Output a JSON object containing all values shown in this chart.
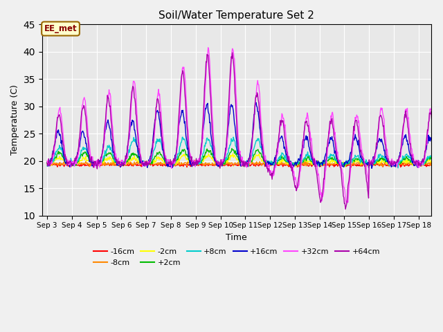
{
  "title": "Soil/Water Temperature Set 2",
  "xlabel": "Time",
  "ylabel": "Temperature (C)",
  "ylim": [
    10,
    45
  ],
  "annotation_text": "EE_met",
  "annotation_bg": "#ffffcc",
  "annotation_border": "#996600",
  "annotation_text_color": "#880000",
  "plot_bg": "#e8e8e8",
  "grid_color": "#ffffff",
  "series_colors": {
    "-16cm": "#ff0000",
    "-8cm": "#ff8800",
    "-2cm": "#ffff00",
    "+2cm": "#00bb00",
    "+8cm": "#00cccc",
    "+16cm": "#0000cc",
    "+32cm": "#ff44ff",
    "+64cm": "#aa00aa"
  },
  "xtick_labels": [
    "Sep 3",
    "Sep 4",
    "Sep 5",
    "Sep 6",
    "Sep 7",
    "Sep 8",
    "Sep 9",
    "Sep 10",
    "Sep 11",
    "Sep 12",
    "Sep 13",
    "Sep 14",
    "Sep 15",
    "Sep 16",
    "Sep 17",
    "Sep 18"
  ],
  "ytick_labels": [
    10,
    15,
    20,
    25,
    30,
    35,
    40,
    45
  ]
}
